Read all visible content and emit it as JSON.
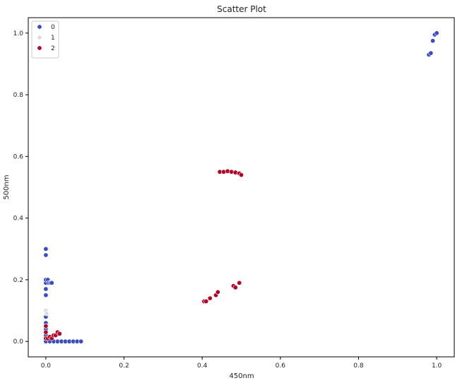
{
  "chart_data": {
    "type": "scatter",
    "title": "Scatter Plot",
    "xlabel": "450nm",
    "ylabel": "500nm",
    "xlim": [
      -0.045,
      1.045
    ],
    "ylim": [
      -0.05,
      1.05
    ],
    "xticks": [
      0.0,
      0.2,
      0.4,
      0.6,
      0.8,
      1.0
    ],
    "xtick_labels": [
      "0.0",
      "0.2",
      "0.4",
      "0.6",
      "0.8",
      "1.0"
    ],
    "yticks": [
      0.0,
      0.2,
      0.4,
      0.6,
      0.8,
      1.0
    ],
    "ytick_labels": [
      "0.0",
      "0.2",
      "0.4",
      "0.6",
      "0.8",
      "1.0"
    ],
    "grid": false,
    "legend_position": "top-left",
    "series": [
      {
        "name": "0",
        "color": "#3b4cc0",
        "points": [
          [
            0.0,
            0.0
          ],
          [
            0.0,
            0.02
          ],
          [
            0.0,
            0.04
          ],
          [
            0.0,
            0.06
          ],
          [
            0.0,
            0.08
          ],
          [
            0.0,
            0.1
          ],
          [
            0.0,
            0.15
          ],
          [
            0.0,
            0.17
          ],
          [
            0.0,
            0.19
          ],
          [
            0.0,
            0.2
          ],
          [
            0.0,
            0.28
          ],
          [
            0.0,
            0.3
          ],
          [
            0.005,
            0.2
          ],
          [
            0.008,
            0.19
          ],
          [
            0.012,
            0.19
          ],
          [
            0.015,
            0.19
          ],
          [
            0.01,
            0.0
          ],
          [
            0.02,
            0.0
          ],
          [
            0.03,
            0.0
          ],
          [
            0.04,
            0.0
          ],
          [
            0.05,
            0.0
          ],
          [
            0.06,
            0.0
          ],
          [
            0.07,
            0.0
          ],
          [
            0.08,
            0.0
          ],
          [
            0.09,
            0.0
          ],
          [
            0.98,
            0.93
          ],
          [
            0.985,
            0.935
          ],
          [
            0.99,
            0.975
          ],
          [
            0.995,
            0.995
          ],
          [
            1.0,
            1.0
          ]
        ]
      },
      {
        "name": "1",
        "color": "#dddddd",
        "points": [
          [
            0.0,
            0.1
          ],
          [
            0.002,
            0.09
          ],
          [
            0.0,
            0.05
          ]
        ]
      },
      {
        "name": "2",
        "color": "#b40426",
        "points": [
          [
            0.0,
            0.01
          ],
          [
            0.0,
            0.03
          ],
          [
            0.0,
            0.05
          ],
          [
            0.005,
            0.01
          ],
          [
            0.01,
            0.015
          ],
          [
            0.015,
            0.01
          ],
          [
            0.02,
            0.02
          ],
          [
            0.025,
            0.02
          ],
          [
            0.03,
            0.03
          ],
          [
            0.035,
            0.025
          ],
          [
            0.405,
            0.13
          ],
          [
            0.41,
            0.13
          ],
          [
            0.42,
            0.14
          ],
          [
            0.435,
            0.15
          ],
          [
            0.44,
            0.16
          ],
          [
            0.48,
            0.18
          ],
          [
            0.485,
            0.175
          ],
          [
            0.495,
            0.19
          ],
          [
            0.445,
            0.55
          ],
          [
            0.455,
            0.55
          ],
          [
            0.465,
            0.552
          ],
          [
            0.475,
            0.55
          ],
          [
            0.485,
            0.548
          ],
          [
            0.495,
            0.545
          ],
          [
            0.5,
            0.54
          ]
        ]
      }
    ]
  }
}
